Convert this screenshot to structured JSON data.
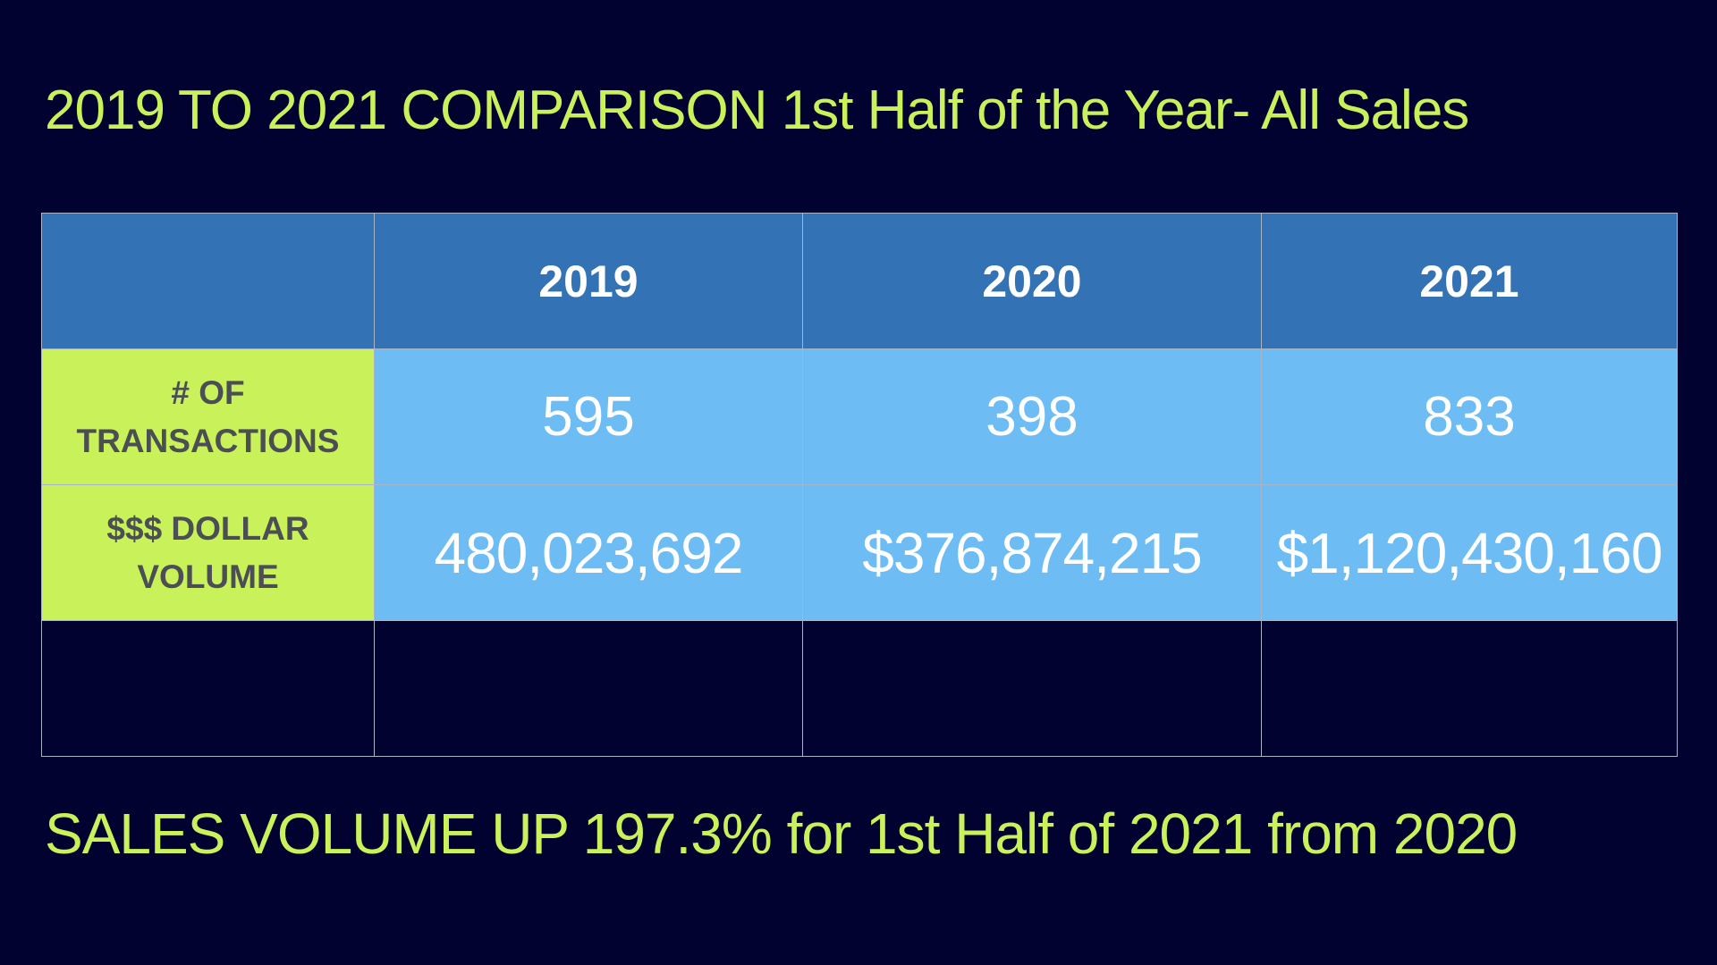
{
  "title": "2019 TO 2021 COMPARISON 1st Half of the Year- All Sales",
  "table": {
    "headers": [
      "",
      "2019",
      "2020",
      "2021"
    ],
    "rows": [
      {
        "label_line1": "# OF",
        "label_line2": "TRANSACTIONS",
        "values": [
          "595",
          "398",
          "833"
        ]
      },
      {
        "label_line1": "$$$ DOLLAR",
        "label_line2": "VOLUME",
        "values": [
          "480,023,692",
          "$376,874,215",
          "$1,120,430,160"
        ]
      }
    ]
  },
  "footer": "SALES VOLUME UP 197.3% for 1st Half of 2021 from 2020",
  "colors": {
    "background": "#020230",
    "accent_green": "#c9f25a",
    "header_blue": "#3373b5",
    "cell_blue": "#6dbcf4",
    "label_text": "#4b4e52"
  }
}
